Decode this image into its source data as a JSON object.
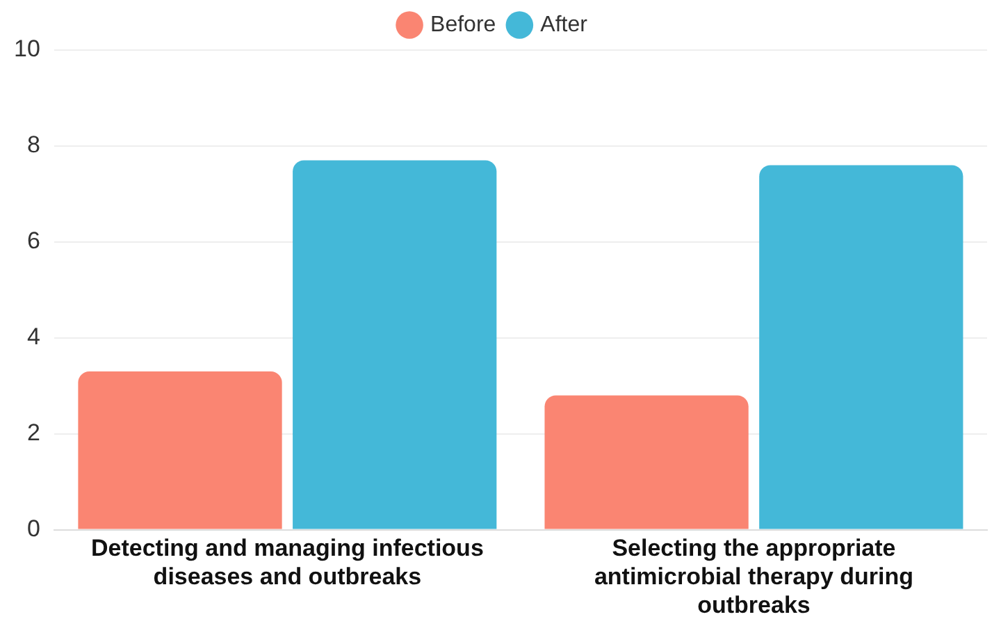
{
  "chart_data": {
    "type": "bar",
    "categories": [
      "Detecting and managing infectious diseases and outbreaks",
      "Selecting the appropriate antimicrobial therapy during outbreaks"
    ],
    "series": [
      {
        "name": "Before",
        "color": "#fa8572",
        "values": [
          3.3,
          2.8
        ]
      },
      {
        "name": "After",
        "color": "#44b8d8",
        "values": [
          7.7,
          7.6
        ]
      }
    ],
    "ylim": [
      0,
      10
    ],
    "yticks": [
      0,
      2,
      4,
      6,
      8,
      10
    ],
    "grid": "y",
    "legend": "top"
  }
}
